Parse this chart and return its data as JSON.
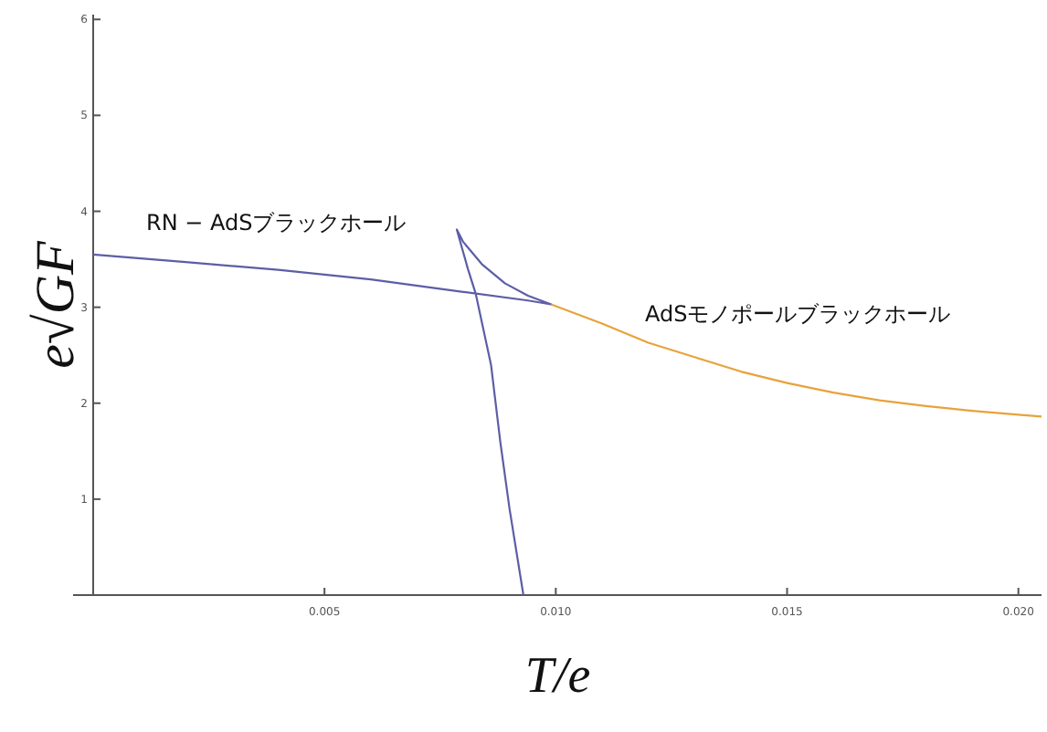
{
  "chart_data": {
    "type": "line",
    "xlabel": "T/e",
    "ylabel": "e√GF",
    "xlim": [
      0,
      0.0205
    ],
    "ylim": [
      0,
      6.05
    ],
    "xticks": [
      {
        "value": 0.005,
        "label": "0.005"
      },
      {
        "value": 0.01,
        "label": "0.010"
      },
      {
        "value": 0.015,
        "label": "0.015"
      },
      {
        "value": 0.02,
        "label": "0.020"
      }
    ],
    "yticks": [
      1,
      2,
      3,
      4,
      5,
      6
    ],
    "grid": false,
    "marker": "none",
    "line_style": "solid",
    "series": [
      {
        "name": "RN − AdSブラックホール",
        "color": "#5c5ea6",
        "x": [
          0,
          0.002,
          0.004,
          0.006,
          0.008,
          0.0094,
          0.0099,
          0.0094,
          0.0089,
          0.0084,
          0.008,
          0.00786,
          0.0081,
          0.00827,
          0.0086,
          0.0088,
          0.009,
          0.0093
        ],
        "values": [
          3.55,
          3.47,
          3.39,
          3.29,
          3.16,
          3.07,
          3.03,
          3.12,
          3.25,
          3.45,
          3.68,
          3.81,
          3.4,
          3.14,
          2.4,
          1.6,
          0.9,
          0
        ]
      },
      {
        "name": "AdSモノポールブラックホール",
        "color": "#e8a23c",
        "x": [
          0.0099,
          0.011,
          0.012,
          0.013,
          0.014,
          0.015,
          0.016,
          0.017,
          0.018,
          0.019,
          0.02,
          0.0205
        ],
        "values": [
          3.03,
          2.83,
          2.63,
          2.48,
          2.33,
          2.21,
          2.11,
          2.03,
          1.97,
          1.92,
          1.88,
          1.86
        ]
      }
    ]
  }
}
